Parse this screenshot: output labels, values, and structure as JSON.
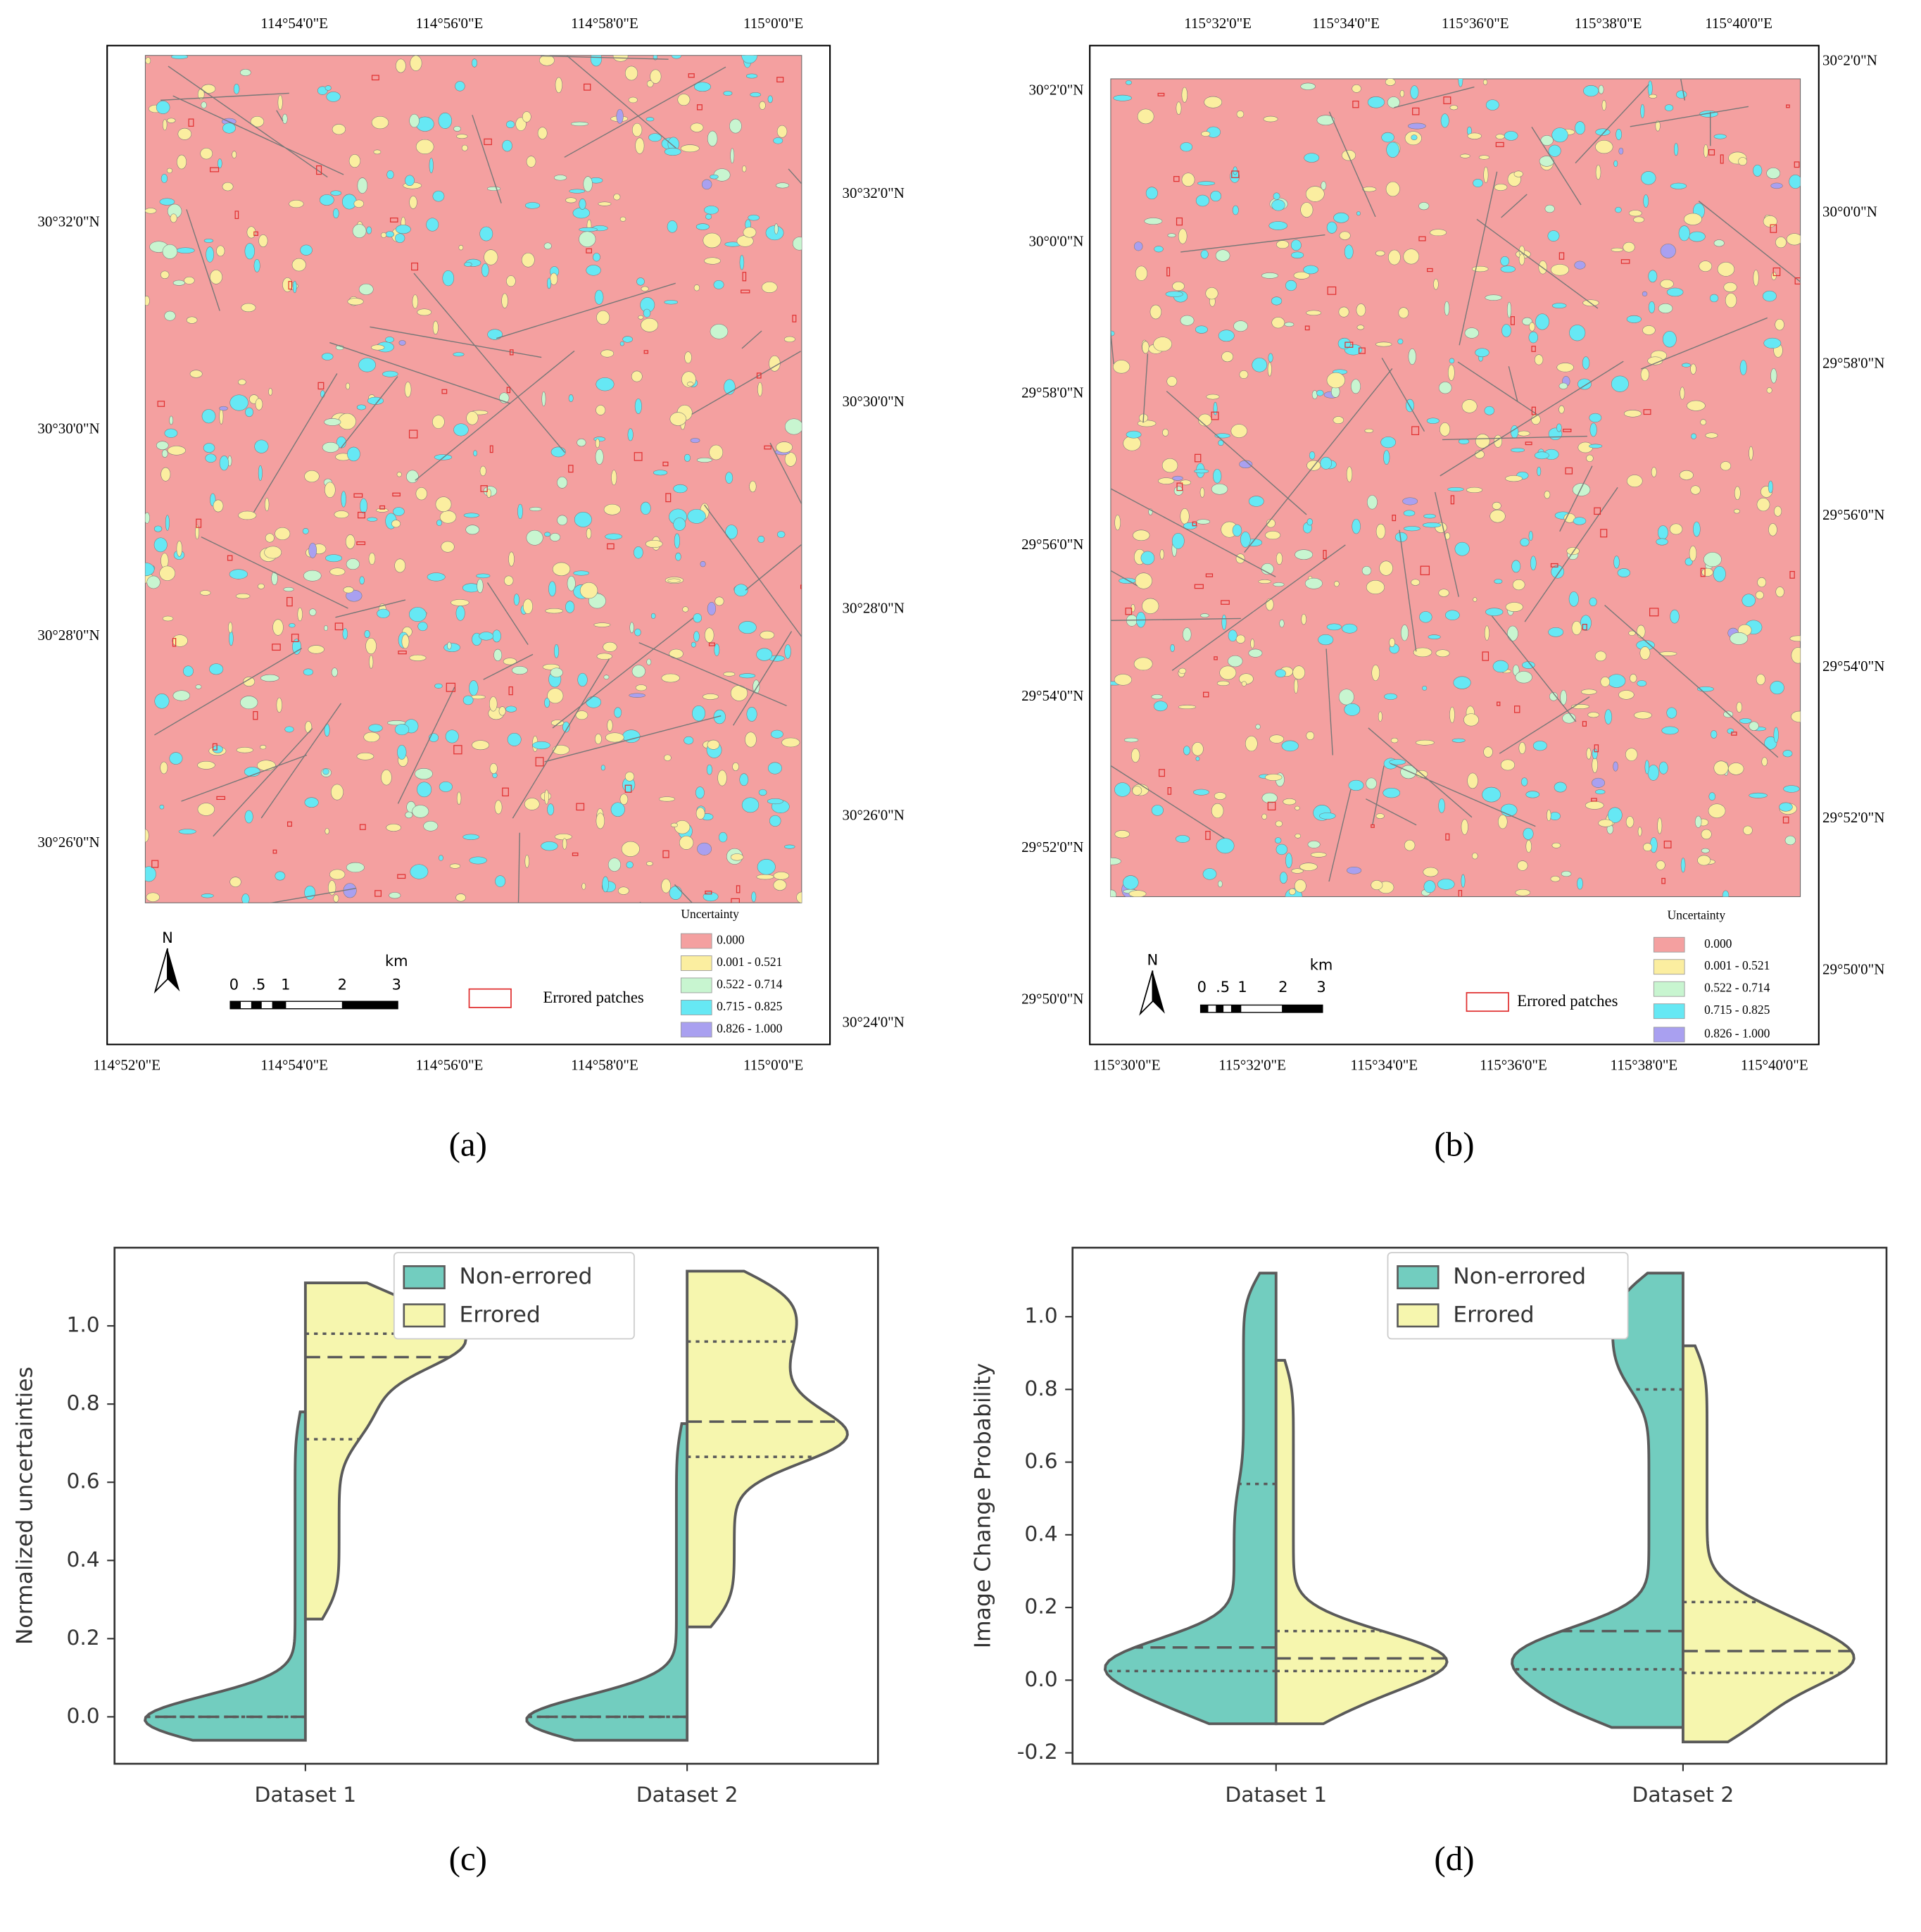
{
  "maps": [
    {
      "label": "(a)",
      "top_labels": [
        "114°54'0\"E",
        "114°56'0\"E",
        "114°58'0\"E",
        "115°0'0\"E"
      ],
      "bottom_labels": [
        "114°52'0\"E",
        "114°54'0\"E",
        "114°56'0\"E",
        "114°58'0\"E",
        "115°0'0\"E"
      ],
      "left_labels": [
        "30°32'0\"N",
        "30°30'0\"N",
        "30°28'0\"N",
        "30°26'0\"N"
      ],
      "right_labels": [
        "30°32'0\"N",
        "30°30'0\"N",
        "30°28'0\"N",
        "30°26'0\"N",
        "30°24'0\"N"
      ],
      "legend_title": "Uncertainty",
      "legend": [
        {
          "label": "0.000",
          "color": "#f4a0a0"
        },
        {
          "label": "0.001 - 0.521",
          "color": "#fbeea0"
        },
        {
          "label": "0.522 - 0.714",
          "color": "#c8f5d0"
        },
        {
          "label": "0.715 - 0.825",
          "color": "#66e8f4"
        },
        {
          "label": "0.826 - 1.000",
          "color": "#a9a0f0"
        }
      ],
      "errored_label": "Errored patches",
      "errored_color": "#e03030",
      "north": "N",
      "scale_labels": [
        "0",
        ".5",
        "1",
        "2",
        "3"
      ],
      "scale_unit": "km"
    },
    {
      "label": "(b)",
      "top_labels": [
        "115°32'0\"E",
        "115°34'0\"E",
        "115°36'0\"E",
        "115°38'0\"E",
        "115°40'0\"E"
      ],
      "bottom_labels": [
        "115°30'0\"E",
        "115°32'0\"E",
        "115°34'0\"E",
        "115°36'0\"E",
        "115°38'0\"E",
        "115°40'0\"E"
      ],
      "left_labels": [
        "30°2'0\"N",
        "30°0'0\"N",
        "29°58'0\"N",
        "29°56'0\"N",
        "29°54'0\"N",
        "29°52'0\"N",
        "29°50'0\"N"
      ],
      "right_labels": [
        "30°2'0\"N",
        "30°0'0\"N",
        "29°58'0\"N",
        "29°56'0\"N",
        "29°54'0\"N",
        "29°52'0\"N",
        "29°50'0\"N"
      ],
      "legend_title": "Uncertainty",
      "legend": [
        {
          "label": "0.000",
          "color": "#f4a0a0"
        },
        {
          "label": "0.001 - 0.521",
          "color": "#fbeea0"
        },
        {
          "label": "0.522 - 0.714",
          "color": "#c8f5d0"
        },
        {
          "label": "0.715 - 0.825",
          "color": "#66e8f4"
        },
        {
          "label": "0.826 - 1.000",
          "color": "#a9a0f0"
        }
      ],
      "errored_label": "Errored patches",
      "errored_color": "#e03030",
      "north": "N",
      "scale_labels": [
        "0",
        ".5",
        "1",
        "2",
        "3"
      ],
      "scale_unit": "km"
    }
  ],
  "chart_data": [
    {
      "type": "violin",
      "label": "(c)",
      "y_label": "Normalized uncertainties",
      "categories": [
        "Dataset 1",
        "Dataset 2"
      ],
      "series": [
        {
          "name": "Non-errored",
          "color": "#72cdbf",
          "values": [
            {
              "min": -0.06,
              "q1": 0.0,
              "median": 0.0,
              "q3": 0.0,
              "max": 0.78
            },
            {
              "min": -0.06,
              "q1": 0.0,
              "median": 0.0,
              "q3": 0.0,
              "max": 0.75
            }
          ]
        },
        {
          "name": "Errored",
          "color": "#f6f6ae",
          "values": [
            {
              "min": 0.25,
              "q1": 0.71,
              "median": 0.92,
              "q3": 0.98,
              "max": 1.11
            },
            {
              "min": 0.23,
              "q1": 0.665,
              "median": 0.755,
              "q3": 0.96,
              "max": 1.14
            }
          ]
        }
      ],
      "ylim": [
        -0.12,
        1.2
      ],
      "yticks": [
        {
          "value": 0,
          "label": "0.0"
        },
        0.2,
        0.4,
        0.6,
        0.8,
        {
          "value": 1,
          "label": "1.0"
        }
      ]
    },
    {
      "type": "violin",
      "label": "(d)",
      "y_label": "Image Change Probability",
      "categories": [
        "Dataset 1",
        "Dataset 2"
      ],
      "series": [
        {
          "name": "Non-errored",
          "color": "#72cdbf",
          "values": [
            {
              "min": -0.12,
              "q1": 0.025,
              "median": 0.09,
              "q3": 0.54,
              "max": 1.12
            },
            {
              "min": -0.13,
              "q1": 0.03,
              "median": 0.135,
              "q3": 0.8,
              "max": 1.12
            }
          ]
        },
        {
          "name": "Errored",
          "color": "#f6f6ae",
          "values": [
            {
              "min": -0.12,
              "q1": 0.025,
              "median": 0.06,
              "q3": 0.135,
              "max": 0.88
            },
            {
              "min": -0.17,
              "q1": 0.02,
              "median": 0.08,
              "q3": 0.215,
              "max": 0.92
            }
          ]
        }
      ],
      "ylim": [
        -0.23,
        1.19
      ],
      "yticks": [
        -0.2,
        {
          "value": 0,
          "label": "0.0"
        },
        0.2,
        0.4,
        0.6,
        0.8,
        {
          "value": 1,
          "label": "1.0"
        }
      ]
    }
  ]
}
